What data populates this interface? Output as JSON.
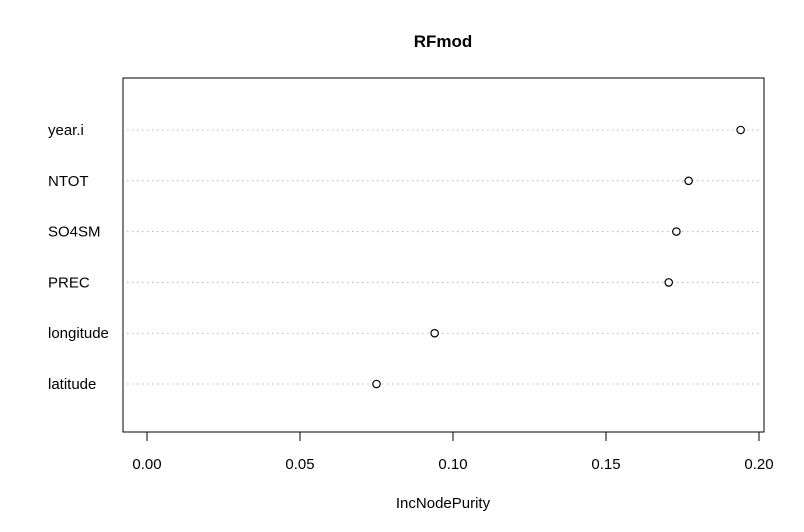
{
  "chart_data": {
    "type": "scatter",
    "title": "RFmod",
    "xlabel": "IncNodePurity",
    "ylabel": "",
    "xlim": [
      0.0,
      0.2
    ],
    "x_ticks": [
      "0.00",
      "0.05",
      "0.10",
      "0.15",
      "0.20"
    ],
    "categories": [
      "year.i",
      "NTOT",
      "SO4SM",
      "PREC",
      "longitude",
      "latitude"
    ],
    "values": [
      0.194,
      0.177,
      0.173,
      0.1705,
      0.094,
      0.075
    ],
    "grid": "dotted horizontal guide lines per variable",
    "marker": "open circle"
  }
}
